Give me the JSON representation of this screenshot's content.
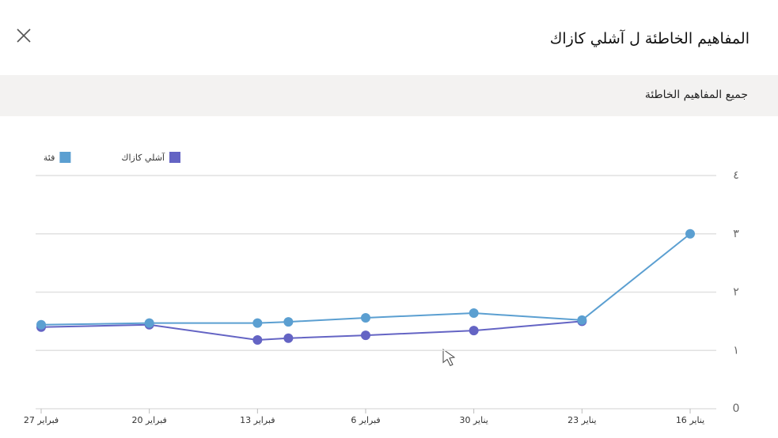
{
  "header": {
    "title": "المفاهيم الخاطئة ل آشلي كازاك",
    "section": "جميع المفاهيم الخاطئة"
  },
  "chart_data": {
    "type": "line",
    "x_reversed": true,
    "grid": true,
    "x": [
      "01-16",
      "01-23",
      "01-30",
      "02-06",
      "02-11",
      "02-13",
      "02-20",
      "02-27"
    ],
    "xlim": [
      "01-16",
      "02-27"
    ],
    "xticks": [
      {
        "value": "01-16",
        "label": "16 يناير"
      },
      {
        "value": "01-23",
        "label": "23 يناير"
      },
      {
        "value": "01-30",
        "label": "30 يناير"
      },
      {
        "value": "02-06",
        "label": "6 فبراير"
      },
      {
        "value": "02-13",
        "label": "13 فبراير"
      },
      {
        "value": "02-20",
        "label": "20 فبراير"
      },
      {
        "value": "02-27",
        "label": "27 فبراير"
      }
    ],
    "ylim": [
      0,
      4
    ],
    "yticks": [
      0,
      {
        "value": 1,
        "label": "١"
      },
      {
        "value": 2,
        "label": "٢"
      },
      {
        "value": 3,
        "label": "٣"
      },
      {
        "value": 4,
        "label": "٤"
      }
    ],
    "series": [
      {
        "name": "آشلي كازاك",
        "color": "#6464c4",
        "values": [
          null,
          1.5,
          1.34,
          1.26,
          1.21,
          1.18,
          1.44,
          1.4
        ]
      },
      {
        "name": "فئة",
        "color": "#5b9fd1",
        "values": [
          3.0,
          1.52,
          1.64,
          1.56,
          1.49,
          1.47,
          1.47,
          1.44
        ]
      }
    ]
  }
}
